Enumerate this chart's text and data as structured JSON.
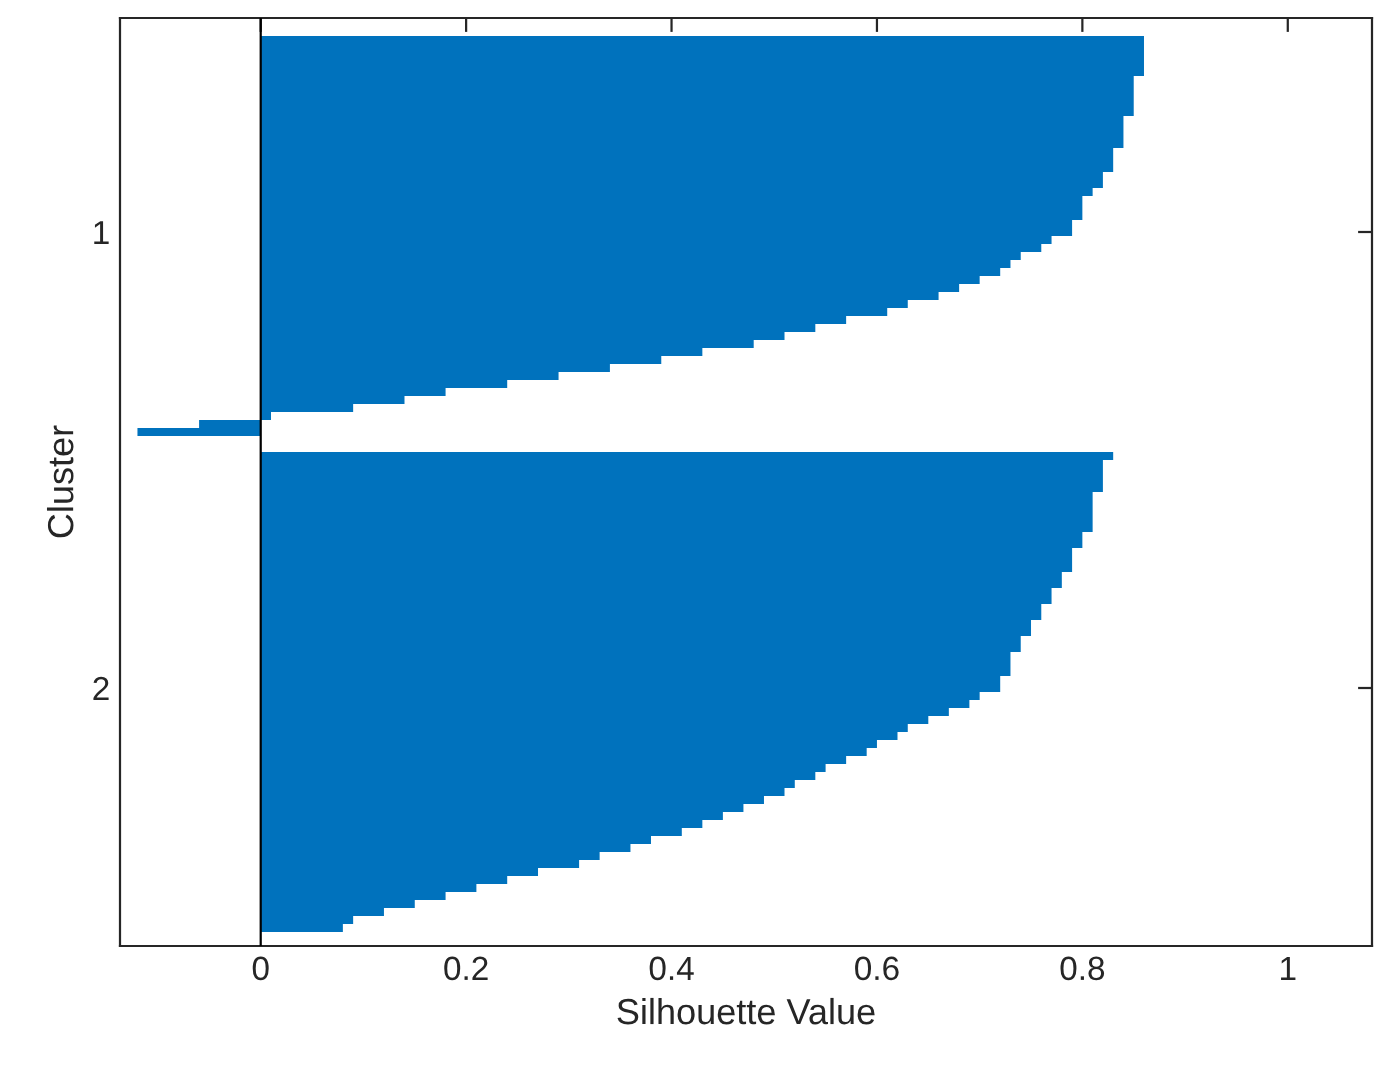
{
  "chart_data": {
    "type": "bar",
    "orientation": "horizontal",
    "xlabel": "Silhouette Value",
    "ylabel": "Cluster",
    "categories": [
      null,
      null,
      null,
      null,
      null,
      null,
      null,
      null,
      null,
      null,
      null,
      null,
      null,
      null,
      null,
      null,
      null,
      null,
      null,
      null,
      null,
      null,
      null,
      null,
      "1",
      null,
      null,
      null,
      null,
      null,
      null,
      null,
      null,
      null,
      null,
      null,
      null,
      null,
      null,
      null,
      null,
      null,
      null,
      null,
      null,
      null,
      null,
      null,
      null,
      null,
      null,
      null,
      null,
      null,
      null,
      null,
      null,
      null,
      null,
      null,
      null,
      null,
      null,
      null,
      null,
      null,
      null,
      null,
      null,
      null,
      null,
      null,
      null,
      null,
      null,
      null,
      null,
      null,
      null,
      null,
      null,
      "2",
      null,
      null,
      null,
      null,
      null,
      null,
      null,
      null,
      null,
      null,
      null,
      null,
      null,
      null,
      null,
      null,
      null,
      null,
      null,
      null,
      null,
      null,
      null,
      null,
      null,
      null,
      null,
      null,
      null,
      null
    ],
    "values": [
      0.86,
      0.86,
      0.86,
      0.86,
      0.86,
      0.85,
      0.85,
      0.85,
      0.85,
      0.85,
      0.84,
      0.84,
      0.84,
      0.84,
      0.83,
      0.83,
      0.83,
      0.82,
      0.82,
      0.81,
      0.8,
      0.8,
      0.8,
      0.79,
      0.79,
      0.77,
      0.76,
      0.74,
      0.73,
      0.72,
      0.7,
      0.68,
      0.66,
      0.63,
      0.61,
      0.57,
      0.54,
      0.51,
      0.48,
      0.43,
      0.39,
      0.34,
      0.29,
      0.24,
      0.18,
      0.14,
      0.09,
      0.01,
      -0.06,
      -0.12,
      null,
      null,
      0.83,
      0.82,
      0.82,
      0.82,
      0.82,
      0.81,
      0.81,
      0.81,
      0.81,
      0.81,
      0.8,
      0.8,
      0.79,
      0.79,
      0.79,
      0.78,
      0.78,
      0.77,
      0.77,
      0.76,
      0.76,
      0.75,
      0.75,
      0.74,
      0.74,
      0.73,
      0.73,
      0.73,
      0.72,
      0.72,
      0.7,
      0.69,
      0.67,
      0.65,
      0.63,
      0.62,
      0.6,
      0.59,
      0.57,
      0.55,
      0.54,
      0.52,
      0.51,
      0.49,
      0.47,
      0.45,
      0.43,
      0.41,
      0.38,
      0.36,
      0.33,
      0.31,
      0.27,
      0.24,
      0.21,
      0.18,
      0.15,
      0.12,
      0.09,
      0.08
    ],
    "color": "#0072bd",
    "xlim": [
      -0.137,
      1.082
    ],
    "xticks": [
      0,
      0.2,
      0.4,
      0.6,
      0.8,
      1
    ],
    "ref_lines": [
      {
        "axis": "x",
        "value": 0,
        "color": "#000000"
      }
    ]
  }
}
